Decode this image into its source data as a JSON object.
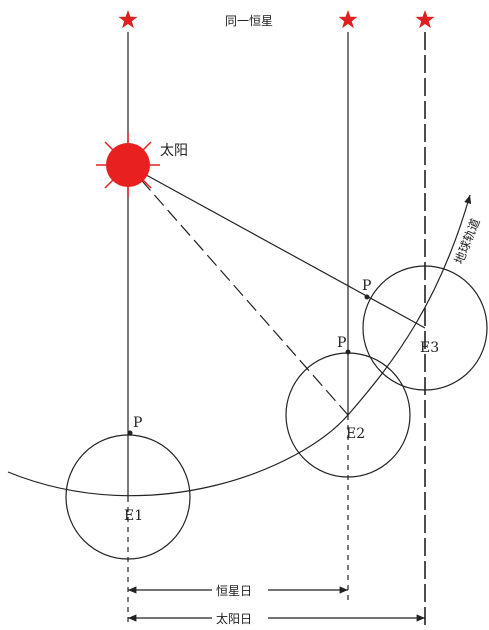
{
  "title": "同一恒星",
  "sun": "太阳",
  "orbit": "地球轨道",
  "points": [
    "P",
    "P",
    "P"
  ],
  "earths": [
    "E1",
    "E2",
    "E3"
  ],
  "sidereal_day": "恒星日",
  "solar_day": "太阳日"
}
